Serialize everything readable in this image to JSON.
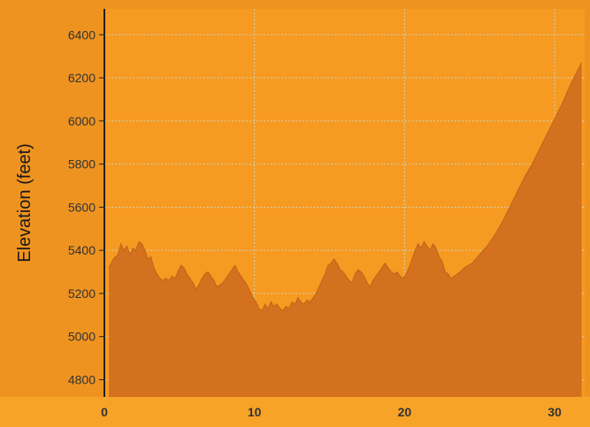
{
  "chart_data": {
    "type": "area",
    "title": "",
    "xlabel": "",
    "ylabel": "Elevation (feet)",
    "xlim": [
      0,
      32
    ],
    "ylim": [
      4720,
      6520
    ],
    "x_ticks": [
      0,
      10,
      20,
      30
    ],
    "y_ticks": [
      4800,
      5000,
      5200,
      5400,
      5600,
      5800,
      6000,
      6200,
      6400
    ],
    "grid": true,
    "legend": "none",
    "colors": {
      "background": "#ef9320",
      "plot_area": "#f69a22",
      "fill": "#d4711e",
      "fill_edge": "#c06418",
      "axis_band": "#f7a328",
      "grid": "#d2d2b4",
      "tick_text": "#333333",
      "axis_line": "#222222"
    },
    "series": [
      {
        "x": [
          0.3,
          0.6,
          0.9,
          1.1,
          1.3,
          1.5,
          1.7,
          1.9,
          2.1,
          2.3,
          2.5,
          2.7,
          2.9,
          3.1,
          3.3,
          3.5,
          3.7,
          3.9,
          4.1,
          4.3,
          4.5,
          4.7,
          4.9,
          5.1,
          5.3,
          5.5,
          5.7,
          5.9,
          6.1,
          6.3,
          6.5,
          6.7,
          6.9,
          7.1,
          7.3,
          7.5,
          7.7,
          7.9,
          8.1,
          8.3,
          8.5,
          8.7,
          8.9,
          9.1,
          9.3,
          9.5,
          9.7,
          9.9,
          10.1,
          10.3,
          10.5,
          10.7,
          10.9,
          11.1,
          11.3,
          11.5,
          11.7,
          11.9,
          12.1,
          12.3,
          12.5,
          12.7,
          12.9,
          13.1,
          13.3,
          13.5,
          13.7,
          13.9,
          14.1,
          14.3,
          14.5,
          14.7,
          14.9,
          15.1,
          15.3,
          15.5,
          15.7,
          15.9,
          16.1,
          16.3,
          16.5,
          16.7,
          16.9,
          17.1,
          17.3,
          17.5,
          17.7,
          17.9,
          18.1,
          18.3,
          18.5,
          18.7,
          18.9,
          19.1,
          19.3,
          19.5,
          19.7,
          19.9,
          20.1,
          20.3,
          20.5,
          20.7,
          20.9,
          21.1,
          21.3,
          21.5,
          21.7,
          21.9,
          22.1,
          22.3,
          22.5,
          22.7,
          22.9,
          23.1,
          23.3,
          23.5,
          23.7,
          24.0,
          24.5,
          25.0,
          25.5,
          26.0,
          26.5,
          27.0,
          27.5,
          28.0,
          28.5,
          29.0,
          29.5,
          30.0,
          30.5,
          31.0,
          31.5,
          31.8
        ],
        "y": [
          5320,
          5360,
          5380,
          5430,
          5400,
          5420,
          5380,
          5410,
          5400,
          5440,
          5430,
          5400,
          5360,
          5370,
          5320,
          5290,
          5270,
          5260,
          5270,
          5260,
          5280,
          5270,
          5300,
          5330,
          5320,
          5290,
          5270,
          5250,
          5220,
          5240,
          5270,
          5290,
          5300,
          5280,
          5260,
          5230,
          5240,
          5250,
          5270,
          5290,
          5310,
          5330,
          5300,
          5280,
          5260,
          5240,
          5210,
          5180,
          5160,
          5130,
          5120,
          5150,
          5130,
          5160,
          5140,
          5150,
          5130,
          5120,
          5140,
          5130,
          5160,
          5150,
          5180,
          5160,
          5150,
          5170,
          5160,
          5180,
          5200,
          5230,
          5260,
          5290,
          5330,
          5340,
          5360,
          5340,
          5310,
          5300,
          5280,
          5260,
          5250,
          5290,
          5310,
          5300,
          5280,
          5250,
          5230,
          5260,
          5280,
          5300,
          5320,
          5340,
          5320,
          5300,
          5290,
          5300,
          5280,
          5270,
          5290,
          5320,
          5360,
          5400,
          5430,
          5410,
          5440,
          5420,
          5400,
          5430,
          5410,
          5370,
          5350,
          5300,
          5290,
          5270,
          5280,
          5290,
          5300,
          5320,
          5340,
          5380,
          5420,
          5470,
          5530,
          5600,
          5670,
          5740,
          5800,
          5870,
          5940,
          6010,
          6080,
          6160,
          6230,
          6270
        ]
      }
    ]
  },
  "x_tick_labels": [
    "0",
    "10",
    "20",
    "30"
  ],
  "y_tick_labels": [
    "4800",
    "5000",
    "5200",
    "5400",
    "5600",
    "5800",
    "6000",
    "6200",
    "6400"
  ]
}
